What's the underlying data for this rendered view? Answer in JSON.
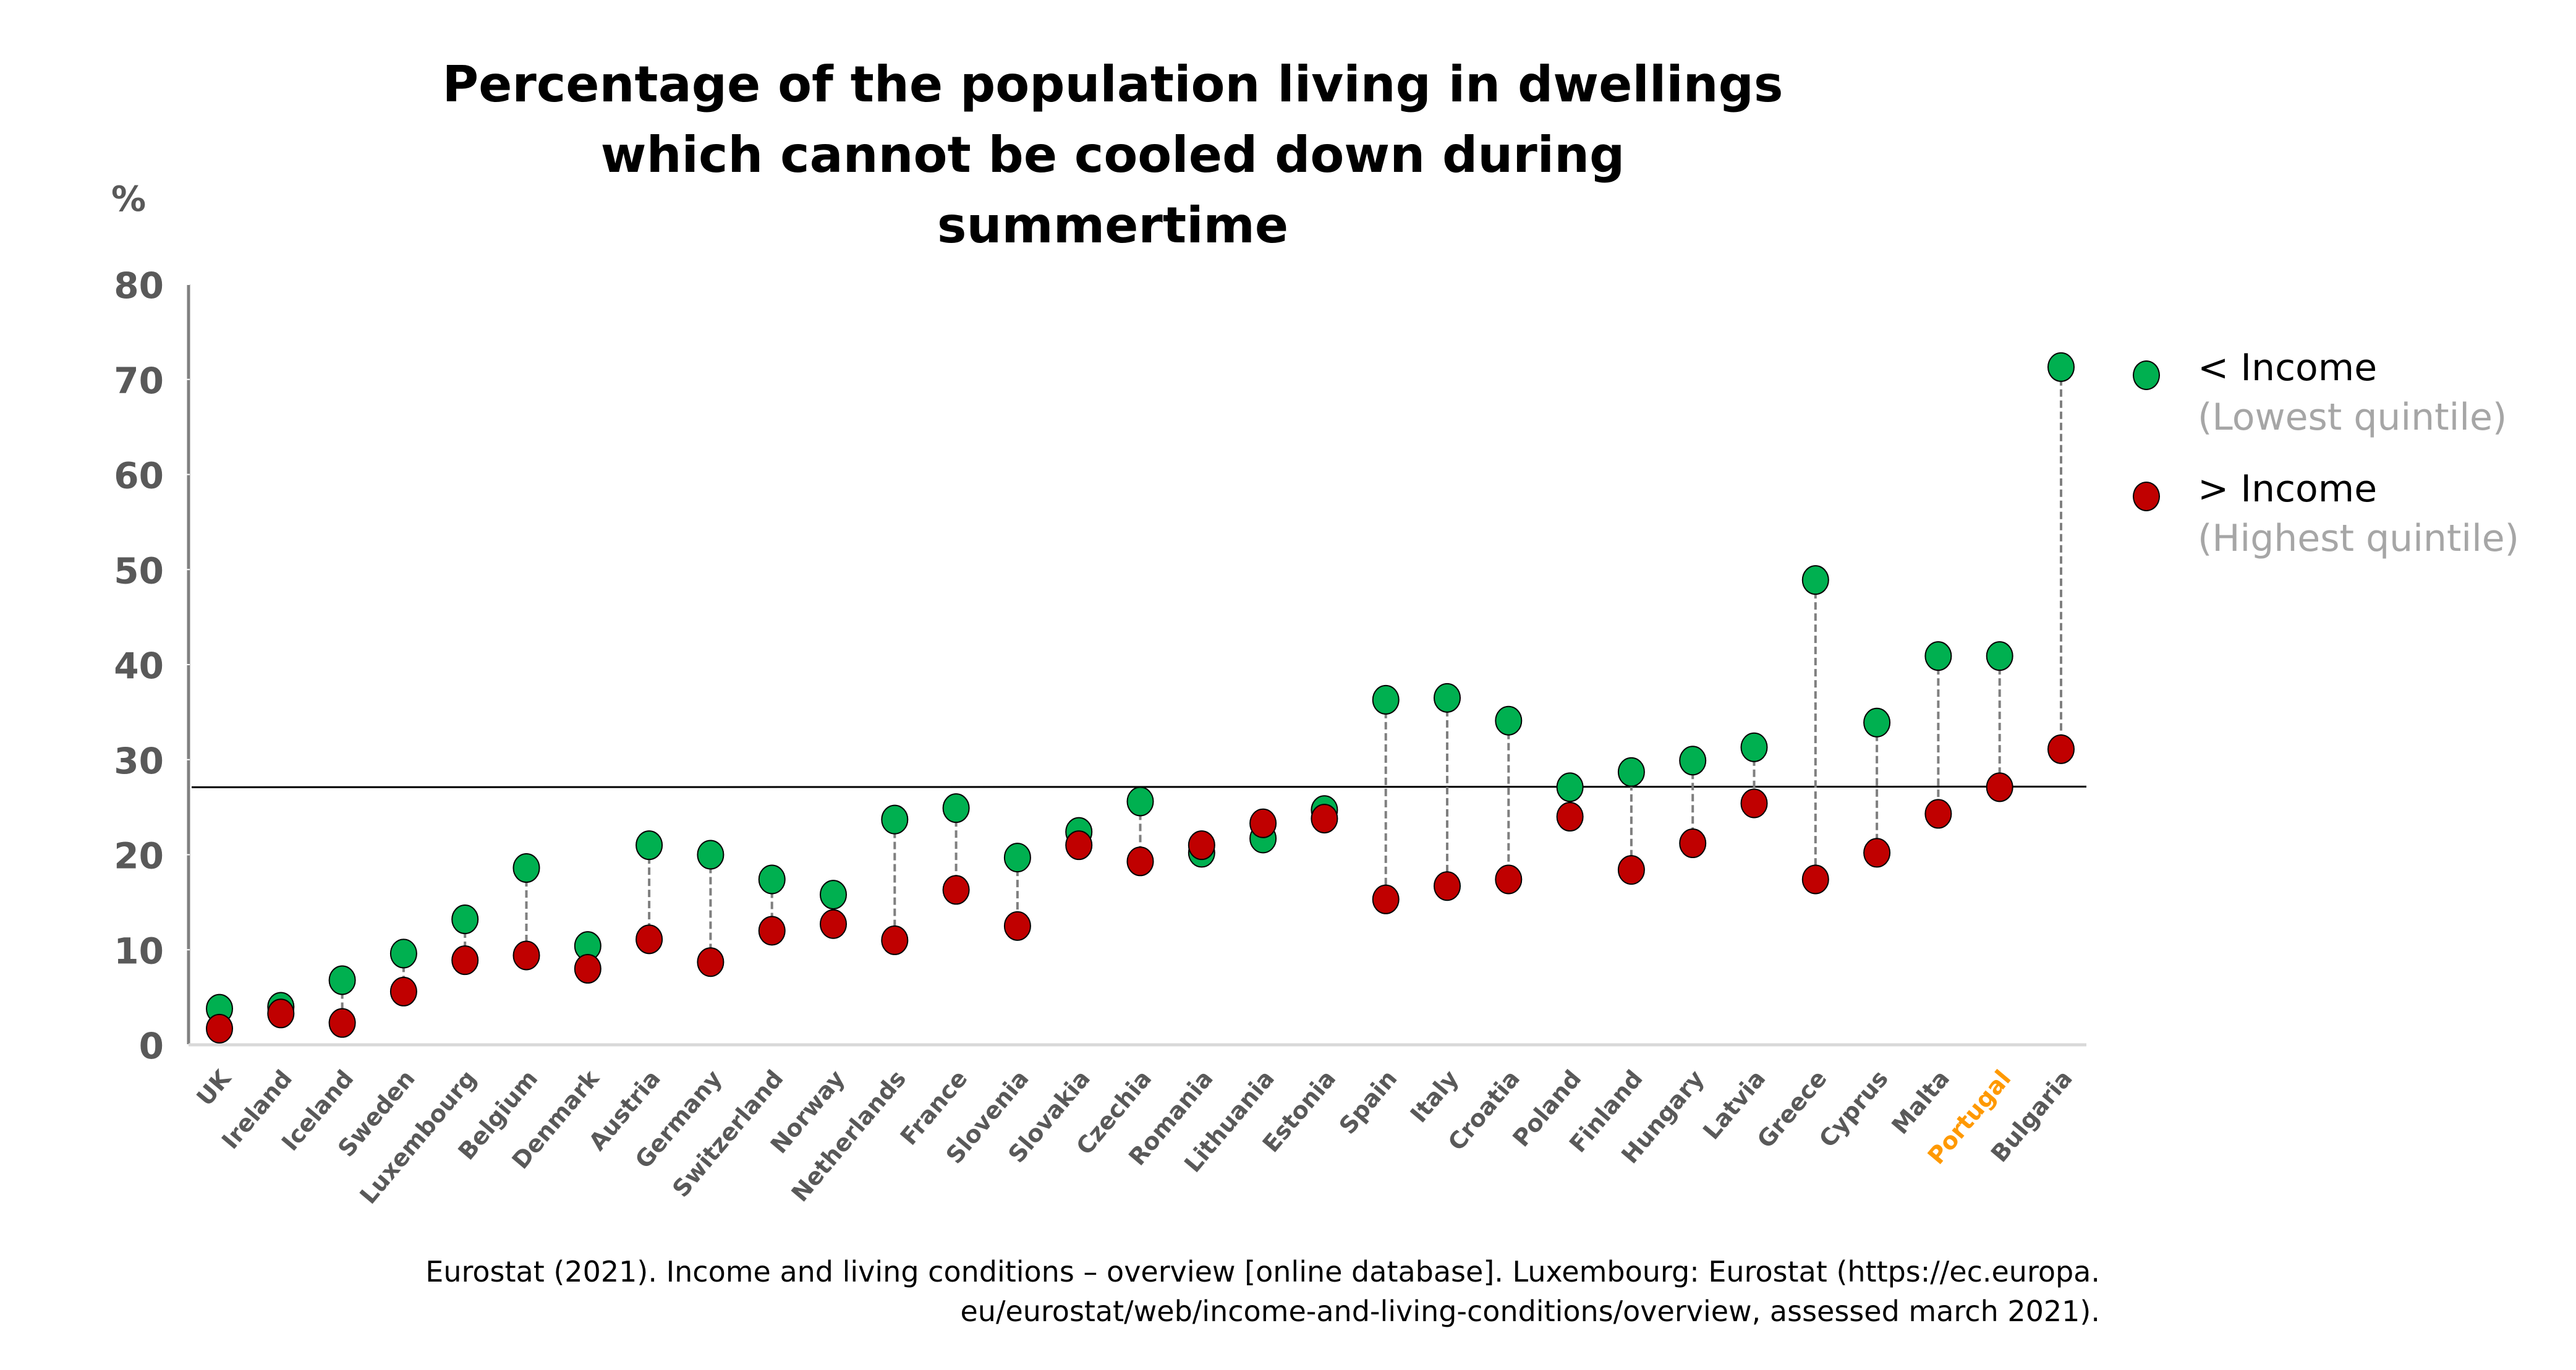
{
  "chart_data": {
    "type": "dumbbell",
    "title_lines": [
      "Percentage of the population living in dwellings",
      "which cannot be cooled down during",
      "summertime"
    ],
    "ylabel": "%",
    "xlabel": "",
    "ylim": [
      0,
      80
    ],
    "yticks": [
      0,
      10,
      20,
      30,
      40,
      50,
      60,
      70,
      80
    ],
    "grid": false,
    "reference_line": {
      "value": 27.1,
      "label": ""
    },
    "categories": [
      "UK",
      "Ireland",
      "Iceland",
      "Sweden",
      "Luxembourg",
      "Belgium",
      "Denmark",
      "Austria",
      "Germany",
      "Switzerland",
      "Norway",
      "Netherlands",
      "France",
      "Slovenia",
      "Slovakia",
      "Czechia",
      "Romania",
      "Lithuania",
      "Estonia",
      "Spain",
      "Italy",
      "Croatia",
      "Poland",
      "Finland",
      "Hungary",
      "Latvia",
      "Greece",
      "Cyprus",
      "Malta",
      "Portugal",
      "Bulgaria"
    ],
    "highlight_category": "Portugal",
    "series": [
      {
        "name": "< Income",
        "subtitle": "(Lowest quintile)",
        "color": "#00b050",
        "values": [
          3.8,
          4.0,
          6.8,
          9.6,
          13.2,
          18.6,
          10.4,
          21.0,
          20.0,
          17.4,
          15.8,
          23.7,
          24.9,
          19.7,
          22.4,
          25.6,
          20.2,
          21.7,
          24.7,
          36.3,
          36.5,
          34.1,
          27.1,
          28.7,
          29.9,
          31.3,
          48.9,
          33.9,
          40.9,
          40.9,
          71.3
        ]
      },
      {
        "name": "> Income",
        "subtitle": "(Highest quintile)",
        "color": "#c00000",
        "values": [
          1.7,
          3.3,
          2.3,
          5.6,
          8.9,
          9.4,
          8.0,
          11.1,
          8.7,
          12.0,
          12.7,
          11.0,
          16.3,
          12.5,
          21.0,
          19.3,
          21.0,
          23.3,
          23.8,
          15.3,
          16.7,
          17.4,
          24.0,
          18.4,
          21.2,
          25.4,
          17.4,
          20.2,
          24.3,
          27.1,
          31.1
        ]
      }
    ],
    "legend_position": "right",
    "colors": {
      "axis_text": "#595959",
      "highlight_label": "#ff9900",
      "connector": "#7f7f7f",
      "reference_line": "#000000",
      "legend_subtitle": "#a6a6a6"
    }
  },
  "source_lines": [
    "Eurostat (2021). Income and living conditions – overview [online database]. Luxembourg: Eurostat (https://ec.europa.",
    "eu/eurostat/web/income-and-living-conditions/overview, assessed march 2021)."
  ]
}
